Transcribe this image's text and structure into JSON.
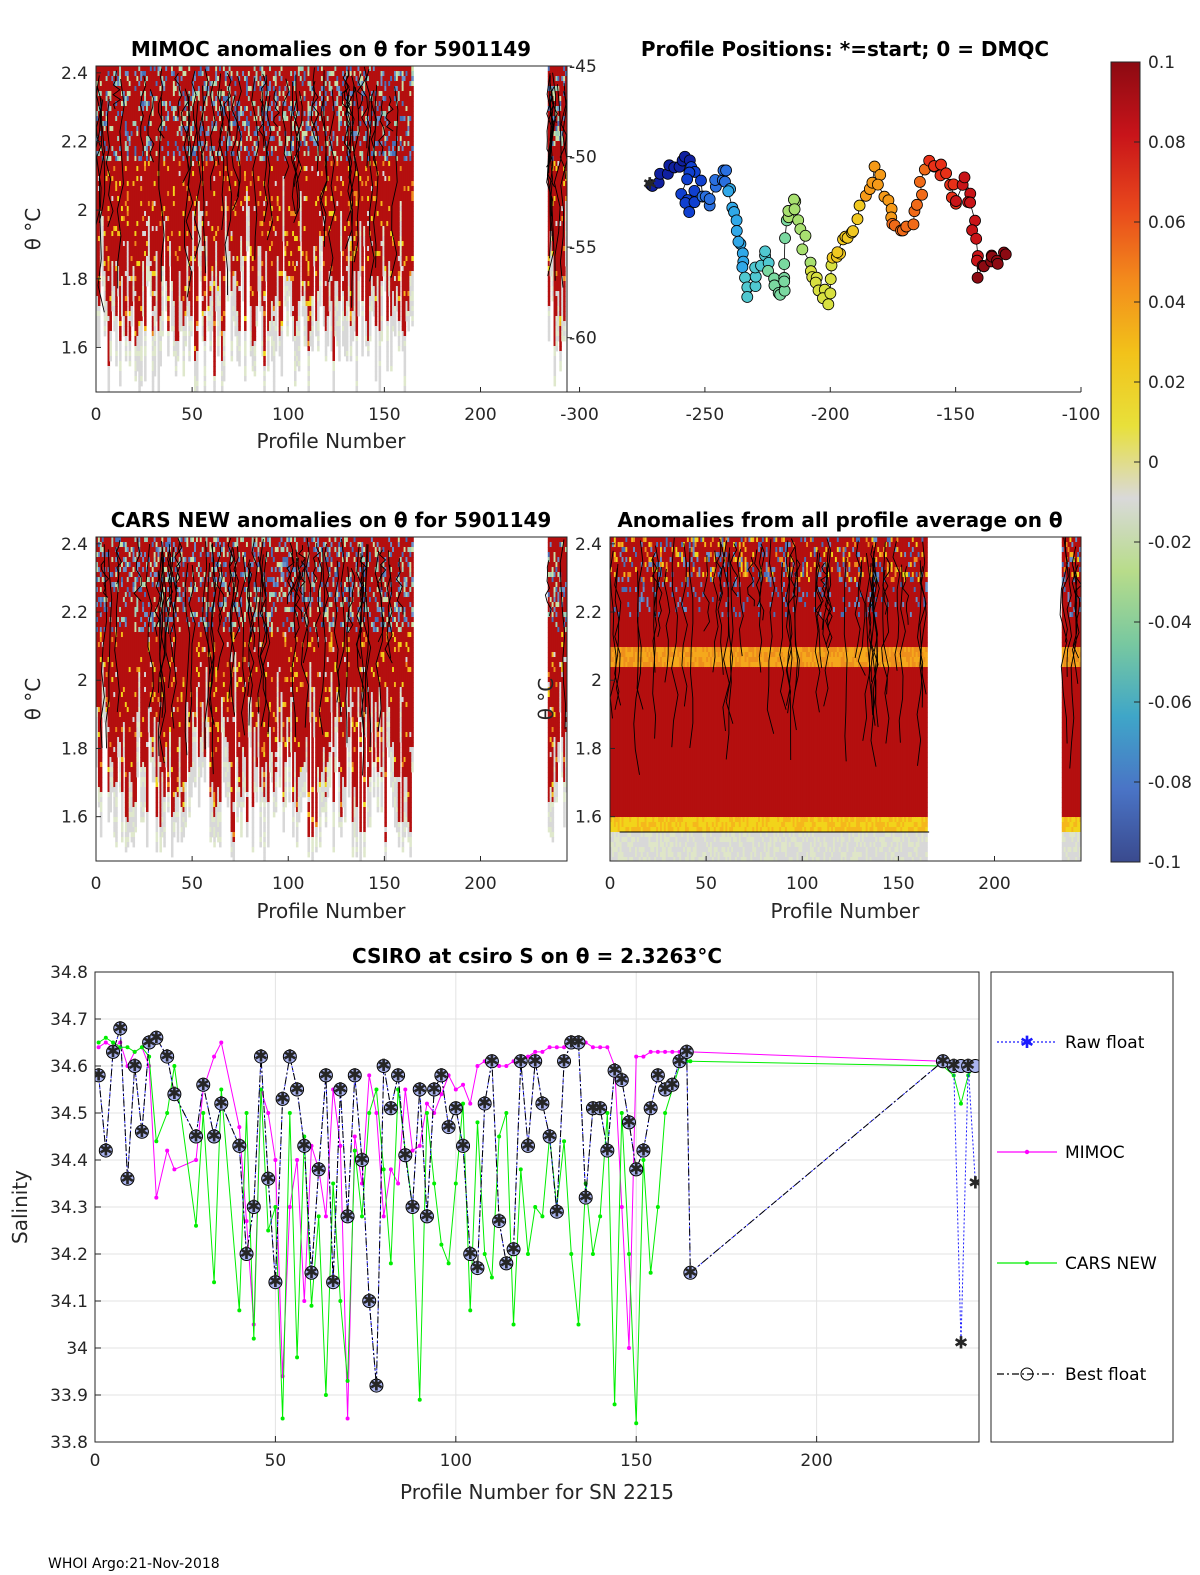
{
  "footer": "WHOI Argo:21-Nov-2018",
  "colors": {
    "mimoc": "#ff00ff",
    "cars": "#00ee00",
    "raw": "#1a1aff",
    "best": "#000000",
    "marker_fill": "#aab4f0",
    "anomaly_red": "#b40f0f",
    "anomaly_grey": "#d8d8d8",
    "anomaly_blue": "#4a6fb5"
  },
  "colorbar": {
    "ticks": [
      "0.1",
      "0.08",
      "0.06",
      "0.04",
      "0.02",
      "0",
      "-0.02",
      "-0.04",
      "-0.06",
      "-0.08",
      "-0.1"
    ],
    "stops": [
      "#8c0a12",
      "#c8141a",
      "#e8471c",
      "#f38b1c",
      "#f2c21a",
      "#e8e03a",
      "#d9d9d9",
      "#b8dc8a",
      "#78c8a0",
      "#3fa6c8",
      "#4a74c6",
      "#3a4a8e"
    ]
  },
  "chart_data": [
    {
      "id": "mimoc-anomalies",
      "type": "heatmap",
      "title": "MIMOC anomalies on θ  for 5901149",
      "xlabel": "Profile Number",
      "ylabel": "θ °C",
      "xlim": [
        0,
        245
      ],
      "ylim": [
        1.47,
        2.42
      ],
      "xticks": [
        "0",
        "50",
        "100",
        "150",
        "200"
      ],
      "yticks": [
        "2.4",
        "2.2",
        "2",
        "1.8",
        "1.6"
      ],
      "data_profiles": [
        [
          0,
          165
        ],
        [
          235,
          245
        ]
      ]
    },
    {
      "id": "profile-positions",
      "type": "scatter",
      "title": "Profile Positions: *=start; 0 = DMQC",
      "xlim": [
        -305,
        -100
      ],
      "ylim": [
        -63,
        -45
      ],
      "xticks": [
        "-300",
        "-250",
        "-200",
        "-150",
        "-100"
      ],
      "yticks": [
        "-45",
        "-50",
        "-55",
        "-60"
      ],
      "start": [
        -272,
        -51.5
      ],
      "track": [
        [
          -272,
          -51.5
        ],
        [
          -268,
          -51
        ],
        [
          -262,
          -50.5
        ],
        [
          -258,
          -49.8
        ],
        [
          -255,
          -50.6
        ],
        [
          -259,
          -51.9
        ],
        [
          -256,
          -52.8
        ],
        [
          -252,
          -51.6
        ],
        [
          -248,
          -52.6
        ],
        [
          -245,
          -51.2
        ],
        [
          -242,
          -50.8
        ],
        [
          -240,
          -52.2
        ],
        [
          -238,
          -53.8
        ],
        [
          -236,
          -55.0
        ],
        [
          -234,
          -56.2
        ],
        [
          -232,
          -57.5
        ],
        [
          -229,
          -56.1
        ],
        [
          -226,
          -55.4
        ],
        [
          -223,
          -57.0
        ],
        [
          -220,
          -57.6
        ],
        [
          -218,
          -56.6
        ],
        [
          -217,
          -53.8
        ],
        [
          -215,
          -52.2
        ],
        [
          -212,
          -53.3
        ],
        [
          -210,
          -55.3
        ],
        [
          -206,
          -56.4
        ],
        [
          -204,
          -57.2
        ],
        [
          -201,
          -58.4
        ],
        [
          -199,
          -56.1
        ],
        [
          -197,
          -55.3
        ],
        [
          -194,
          -54.4
        ],
        [
          -190,
          -53.9
        ],
        [
          -186,
          -52.4
        ],
        [
          -182,
          -50.8
        ],
        [
          -179,
          -52.2
        ],
        [
          -175,
          -53.3
        ],
        [
          -172,
          -54.3
        ],
        [
          -168,
          -53.6
        ],
        [
          -164,
          -52.0
        ],
        [
          -161,
          -50.4
        ],
        [
          -157,
          -50.6
        ],
        [
          -153,
          -51.4
        ],
        [
          -150,
          -52.6
        ],
        [
          -146,
          -51.4
        ],
        [
          -144,
          -52.8
        ],
        [
          -142,
          -54.8
        ],
        [
          -140,
          -56.6
        ],
        [
          -137,
          -55.6
        ],
        [
          -133,
          -55.9
        ],
        [
          -130,
          -55.4
        ]
      ]
    },
    {
      "id": "cars-new-anomalies",
      "type": "heatmap",
      "title": "CARS NEW anomalies on θ for 5901149",
      "xlabel": "Profile Number",
      "ylabel": "θ °C",
      "xlim": [
        0,
        245
      ],
      "ylim": [
        1.47,
        2.42
      ],
      "xticks": [
        "0",
        "50",
        "100",
        "150",
        "200"
      ],
      "yticks": [
        "2.4",
        "2.2",
        "2",
        "1.8",
        "1.6"
      ],
      "data_profiles": [
        [
          0,
          165
        ],
        [
          235,
          245
        ]
      ]
    },
    {
      "id": "average-anomalies",
      "type": "heatmap",
      "title": "Anomalies from all profile average on θ",
      "xlabel": "Profile Number",
      "ylabel": "θ °C",
      "xlim": [
        0,
        245
      ],
      "ylim": [
        1.47,
        2.42
      ],
      "xticks": [
        "0",
        "50",
        "100",
        "150",
        "200"
      ],
      "yticks": [
        "2.4",
        "2.2",
        "2",
        "1.8",
        "1.6"
      ],
      "data_profiles": [
        [
          0,
          165
        ],
        [
          235,
          245
        ]
      ]
    },
    {
      "id": "csiro-salinity",
      "type": "line",
      "title": "CSIRO at csiro S on θ = 2.3263°C",
      "xlabel": "Profile Number for SN 2215",
      "ylabel": "Salinity",
      "xlim": [
        0,
        245
      ],
      "ylim": [
        33.8,
        34.8
      ],
      "grid": true,
      "legend_position": "right-outside",
      "xticks": [
        "0",
        "50",
        "100",
        "150",
        "200"
      ],
      "yticks": [
        "34.8",
        "34.7",
        "34.6",
        "34.5",
        "34.4",
        "34.3",
        "34.2",
        "34.1",
        "34",
        "33.9",
        "33.8"
      ],
      "series": [
        {
          "name": "Raw float",
          "x": [
            1,
            3,
            5,
            7,
            9,
            11,
            13,
            15,
            17,
            20,
            22,
            28,
            30,
            33,
            35,
            40,
            42,
            44,
            46,
            48,
            50,
            52,
            54,
            56,
            58,
            60,
            62,
            64,
            66,
            68,
            70,
            72,
            74,
            76,
            78,
            80,
            82,
            84,
            86,
            88,
            90,
            92,
            94,
            96,
            98,
            100,
            102,
            104,
            106,
            108,
            110,
            112,
            114,
            116,
            118,
            120,
            122,
            124,
            126,
            128,
            130,
            132,
            134,
            136,
            138,
            140,
            142,
            144,
            146,
            148,
            150,
            152,
            154,
            156,
            158,
            160,
            162,
            164,
            165,
            235,
            238,
            240,
            242,
            244
          ],
          "values": [
            34.58,
            34.42,
            34.63,
            34.68,
            34.36,
            34.6,
            34.46,
            34.65,
            34.66,
            34.62,
            34.54,
            34.45,
            34.56,
            34.45,
            34.52,
            34.43,
            34.2,
            34.3,
            34.62,
            34.36,
            34.14,
            34.53,
            34.62,
            34.55,
            34.43,
            34.16,
            34.38,
            34.58,
            34.14,
            34.55,
            34.28,
            34.58,
            34.4,
            34.1,
            33.92,
            34.6,
            34.51,
            34.58,
            34.41,
            34.3,
            34.55,
            34.28,
            34.55,
            34.58,
            34.47,
            34.51,
            34.43,
            34.2,
            34.17,
            34.52,
            34.61,
            34.27,
            34.18,
            34.21,
            34.61,
            34.43,
            34.61,
            34.52,
            34.45,
            34.29,
            34.61,
            34.65,
            34.65,
            34.32,
            34.51,
            34.51,
            34.42,
            34.59,
            34.57,
            34.48,
            34.38,
            34.42,
            34.51,
            34.58,
            34.55,
            34.56,
            34.61,
            34.63,
            34.16,
            34.61,
            34.6,
            34.01,
            34.6,
            34.35
          ]
        },
        {
          "name": "MIMOC",
          "x": [
            1,
            3,
            5,
            7,
            9,
            11,
            13,
            15,
            17,
            20,
            22,
            28,
            30,
            33,
            35,
            40,
            42,
            44,
            46,
            48,
            50,
            52,
            54,
            56,
            58,
            60,
            62,
            64,
            66,
            68,
            70,
            72,
            74,
            76,
            78,
            80,
            82,
            84,
            86,
            88,
            90,
            92,
            94,
            96,
            98,
            100,
            102,
            104,
            106,
            108,
            110,
            112,
            114,
            116,
            118,
            120,
            122,
            124,
            126,
            128,
            130,
            132,
            134,
            136,
            138,
            140,
            142,
            144,
            146,
            148,
            150,
            152,
            154,
            156,
            158,
            160,
            162,
            164,
            165,
            235,
            238,
            240,
            242,
            244
          ],
          "values": [
            34.64,
            34.65,
            34.64,
            34.65,
            34.6,
            34.63,
            34.64,
            34.6,
            34.32,
            34.42,
            34.38,
            34.4,
            34.55,
            34.62,
            34.65,
            34.47,
            34.27,
            34.05,
            34.55,
            34.5,
            34.4,
            33.94,
            34.3,
            34.4,
            34.1,
            34.43,
            34.38,
            34.28,
            34.55,
            34.43,
            33.85,
            34.45,
            34.35,
            34.58,
            34.5,
            34.28,
            34.38,
            34.35,
            34.55,
            34.42,
            34.43,
            34.52,
            34.5,
            34.54,
            34.58,
            34.55,
            34.56,
            34.52,
            34.6,
            34.61,
            34.61,
            34.6,
            34.6,
            34.61,
            34.62,
            34.62,
            34.63,
            34.63,
            34.64,
            34.64,
            34.64,
            34.65,
            34.65,
            34.65,
            34.64,
            34.64,
            34.64,
            34.6,
            34.3,
            34.0,
            34.62,
            34.62,
            34.63,
            34.63,
            34.63,
            34.63,
            34.63,
            34.63,
            34.63,
            34.61,
            34.61,
            34.6,
            34.6,
            34.6
          ]
        },
        {
          "name": "CARS NEW",
          "x": [
            1,
            3,
            5,
            7,
            9,
            11,
            13,
            15,
            17,
            20,
            22,
            28,
            30,
            33,
            35,
            40,
            42,
            44,
            46,
            48,
            50,
            52,
            54,
            56,
            58,
            60,
            62,
            64,
            66,
            68,
            70,
            72,
            74,
            76,
            78,
            80,
            82,
            84,
            86,
            88,
            90,
            92,
            94,
            96,
            98,
            100,
            102,
            104,
            106,
            108,
            110,
            112,
            114,
            116,
            118,
            120,
            122,
            124,
            126,
            128,
            130,
            132,
            134,
            136,
            138,
            140,
            142,
            144,
            146,
            148,
            150,
            152,
            154,
            156,
            158,
            160,
            162,
            164,
            165,
            235,
            238,
            240,
            242,
            244
          ],
          "values": [
            34.65,
            34.66,
            34.65,
            34.64,
            34.64,
            34.63,
            34.64,
            34.62,
            34.44,
            34.5,
            34.6,
            34.26,
            34.5,
            34.14,
            34.55,
            34.08,
            34.5,
            34.02,
            34.55,
            34.25,
            34.3,
            33.85,
            34.5,
            33.98,
            34.45,
            34.09,
            34.28,
            33.9,
            34.35,
            34.1,
            33.93,
            34.42,
            34.28,
            34.5,
            34.55,
            34.38,
            34.18,
            34.55,
            34.42,
            34.3,
            33.89,
            34.5,
            34.35,
            34.22,
            34.18,
            34.35,
            34.52,
            34.08,
            34.48,
            34.2,
            34.15,
            34.45,
            34.5,
            34.05,
            34.38,
            34.2,
            34.3,
            34.28,
            34.45,
            34.3,
            34.44,
            34.2,
            34.05,
            34.35,
            34.2,
            34.28,
            34.5,
            33.88,
            34.5,
            34.2,
            33.84,
            34.4,
            34.16,
            34.3,
            34.5,
            34.55,
            34.6,
            34.61,
            34.61,
            34.6,
            34.58,
            34.52,
            34.58,
            34.6
          ]
        },
        {
          "name": "Best float",
          "x": [
            1,
            3,
            5,
            7,
            9,
            11,
            13,
            15,
            17,
            20,
            22,
            28,
            30,
            33,
            35,
            40,
            42,
            44,
            46,
            48,
            50,
            52,
            54,
            56,
            58,
            60,
            62,
            64,
            66,
            68,
            70,
            72,
            74,
            76,
            78,
            80,
            82,
            84,
            86,
            88,
            90,
            92,
            94,
            96,
            98,
            100,
            102,
            104,
            106,
            108,
            110,
            112,
            114,
            116,
            118,
            120,
            122,
            124,
            126,
            128,
            130,
            132,
            134,
            136,
            138,
            140,
            142,
            144,
            146,
            148,
            150,
            152,
            154,
            156,
            158,
            160,
            162,
            164,
            165,
            235,
            238,
            240,
            242,
            244
          ],
          "values": [
            34.58,
            34.42,
            34.63,
            34.68,
            34.36,
            34.6,
            34.46,
            34.65,
            34.66,
            34.62,
            34.54,
            34.45,
            34.56,
            34.45,
            34.52,
            34.43,
            34.2,
            34.3,
            34.62,
            34.36,
            34.14,
            34.53,
            34.62,
            34.55,
            34.43,
            34.16,
            34.38,
            34.58,
            34.14,
            34.55,
            34.28,
            34.58,
            34.4,
            34.1,
            33.92,
            34.6,
            34.51,
            34.58,
            34.41,
            34.3,
            34.55,
            34.28,
            34.55,
            34.58,
            34.47,
            34.51,
            34.43,
            34.2,
            34.17,
            34.52,
            34.61,
            34.27,
            34.18,
            34.21,
            34.61,
            34.43,
            34.61,
            34.52,
            34.45,
            34.29,
            34.61,
            34.65,
            34.65,
            34.32,
            34.51,
            34.51,
            34.42,
            34.59,
            34.57,
            34.48,
            34.38,
            34.42,
            34.51,
            34.58,
            34.55,
            34.56,
            34.61,
            34.63,
            34.16,
            34.61,
            34.6,
            34.6,
            34.6,
            34.6
          ]
        }
      ]
    }
  ]
}
